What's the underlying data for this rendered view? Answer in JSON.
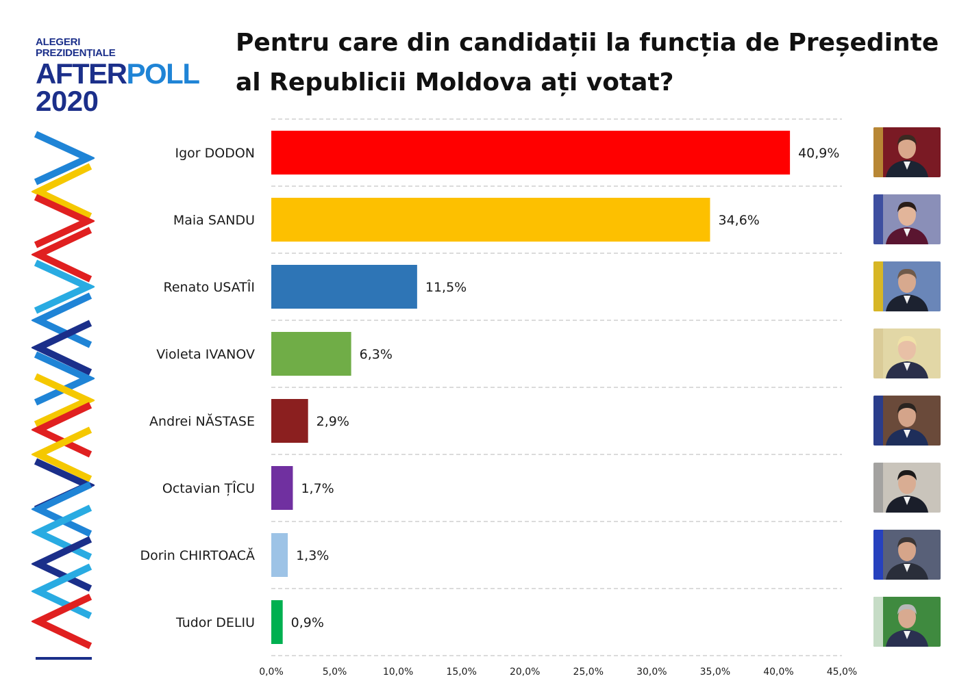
{
  "logo": {
    "line1": "ALEGERI",
    "line2": "PREZIDENȚIALE",
    "brand_part1": "AFTER",
    "brand_part2": "POLL",
    "year": "2020"
  },
  "title": "Pentru care din candidații la funcția de Președinte al Republicii Moldova ați votat?",
  "colors": {
    "gridline": "#cfcfcf",
    "logo_dark": "#1b2f8a",
    "logo_light": "#1f84d6"
  },
  "chart_data": {
    "type": "bar",
    "orientation": "horizontal",
    "title": "Pentru care din candidații la funcția de Președinte al Republicii Moldova ați votat?",
    "categories": [
      "Igor DODON",
      "Maia SANDU",
      "Renato USATÎI",
      "Violeta IVANOV",
      "Andrei NĂSTASE",
      "Octavian ȚÎCU",
      "Dorin CHIRTOACĂ",
      "Tudor DELIU"
    ],
    "values": [
      40.9,
      34.6,
      11.5,
      6.3,
      2.9,
      1.7,
      1.3,
      0.9
    ],
    "value_labels": [
      "40,9%",
      "34,6%",
      "11,5%",
      "6,3%",
      "2,9%",
      "1,7%",
      "1,3%",
      "0,9%"
    ],
    "colors": [
      "#ff0000",
      "#fdc000",
      "#2e75b6",
      "#70ad47",
      "#8b1f1f",
      "#7030a0",
      "#9dc3e6",
      "#00b050"
    ],
    "xlim": [
      0,
      45
    ],
    "xticks": [
      0,
      5,
      10,
      15,
      20,
      25,
      30,
      35,
      40,
      45
    ],
    "xtick_labels": [
      "0,0%",
      "5,0%",
      "10,0%",
      "15,0%",
      "20,0%",
      "25,0%",
      "30,0%",
      "35,0%",
      "40,0%",
      "45,0%"
    ],
    "grid": "horizontal dashed",
    "legend": "none"
  },
  "photos": [
    {
      "bg": "#7a1a24",
      "skin": "#d9a88c",
      "hair": "#3a2a22",
      "suit": "#1c2433",
      "accent": "#c8a23a"
    },
    {
      "bg": "#8a8fb8",
      "skin": "#e2b59a",
      "hair": "#2a1d18",
      "suit": "#5a1530",
      "accent": "#2a3f9a"
    },
    {
      "bg": "#6a86b8",
      "skin": "#d7a98e",
      "hair": "#6f5a4a",
      "suit": "#1c2230",
      "accent": "#f2c200"
    },
    {
      "bg": "#e2d7a6",
      "skin": "#e8c0a6",
      "hair": "#f0e2a8",
      "suit": "#2a2f4a",
      "accent": "#d8c894"
    },
    {
      "bg": "#6a4a3a",
      "skin": "#d4a48a",
      "hair": "#2a2420",
      "suit": "#1e2e5a",
      "accent": "#1a3aa0"
    },
    {
      "bg": "#c9c4bb",
      "skin": "#d9ad93",
      "hair": "#1c1a1a",
      "suit": "#1a1e2a",
      "accent": "#9a9a9a"
    },
    {
      "bg": "#586078",
      "skin": "#d6a58a",
      "hair": "#3a3535",
      "suit": "#2a2e3a",
      "accent": "#1a3ad0"
    },
    {
      "bg": "#3f8a3f",
      "skin": "#d8aa90",
      "hair": "#b8b8b8",
      "suit": "#2a3050",
      "accent": "#e8f0e8"
    }
  ]
}
